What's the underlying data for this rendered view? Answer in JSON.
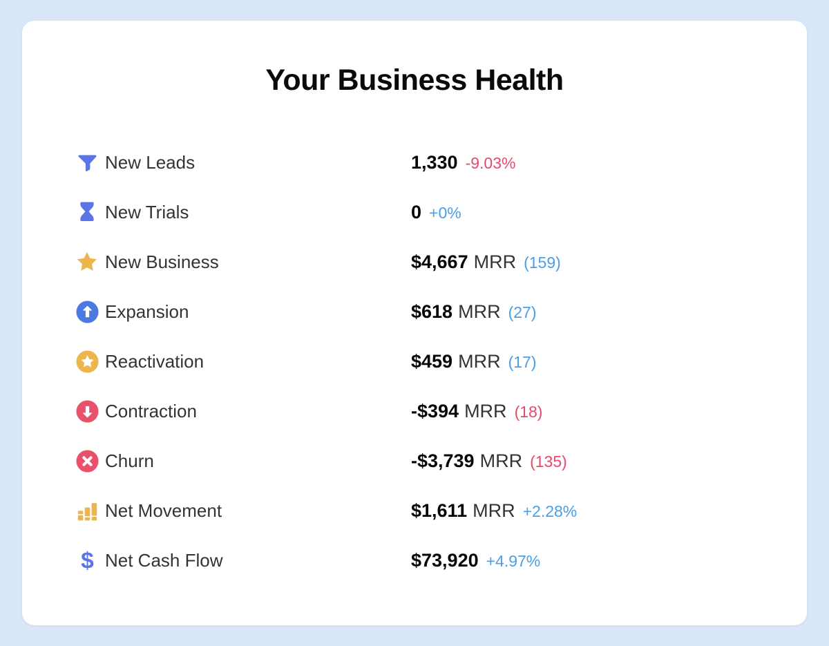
{
  "title": "Your Business Health",
  "colors": {
    "page_bg": "#d9e6f8",
    "card_bg": "#ffffff",
    "icon_blue": "#5b74e8",
    "circle_blue": "#4a79e0",
    "icon_yellow": "#ecb54e",
    "icon_red": "#e8506c",
    "percent_blue": "#4a9de8",
    "percent_red": "#e8486b"
  },
  "rows": [
    {
      "icon": "funnel-icon",
      "label": "New Leads",
      "value": "1,330",
      "suffix": "",
      "secondary": "-9.03%",
      "secondary_color": "red"
    },
    {
      "icon": "hourglass-icon",
      "label": "New Trials",
      "value": "0",
      "suffix": "",
      "secondary": "+0%",
      "secondary_color": "blue"
    },
    {
      "icon": "star-icon",
      "label": "New Business",
      "value": "$4,667",
      "suffix": "MRR",
      "secondary": "(159)",
      "secondary_color": "blue"
    },
    {
      "icon": "arrow-up-circle-icon",
      "label": "Expansion",
      "value": "$618",
      "suffix": "MRR",
      "secondary": "(27)",
      "secondary_color": "blue"
    },
    {
      "icon": "star-circle-icon",
      "label": "Reactivation",
      "value": "$459",
      "suffix": "MRR",
      "secondary": "(17)",
      "secondary_color": "blue"
    },
    {
      "icon": "arrow-down-circle-icon",
      "label": "Contraction",
      "value": "-$394",
      "suffix": "MRR",
      "secondary": "(18)",
      "secondary_color": "red"
    },
    {
      "icon": "x-circle-icon",
      "label": "Churn",
      "value": "-$3,739",
      "suffix": "MRR",
      "secondary": "(135)",
      "secondary_color": "red"
    },
    {
      "icon": "bar-chart-icon",
      "label": "Net Movement",
      "value": "$1,611",
      "suffix": "MRR",
      "secondary": "+2.28%",
      "secondary_color": "blue"
    },
    {
      "icon": "dollar-icon",
      "label": "Net Cash Flow",
      "value": "$73,920",
      "suffix": "",
      "secondary": "+4.97%",
      "secondary_color": "blue"
    }
  ]
}
